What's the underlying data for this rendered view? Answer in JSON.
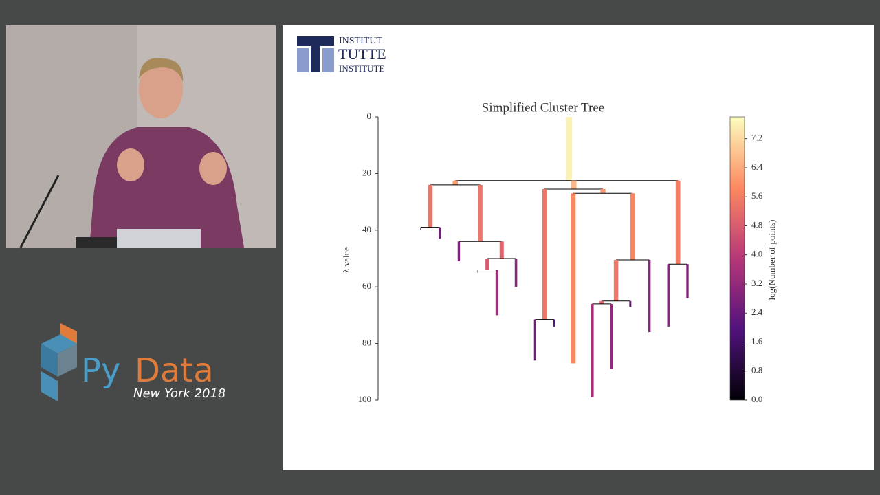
{
  "logo": {
    "line1": "INSTITUT",
    "line2": "TUTTE",
    "line3": "INSTITUTE"
  },
  "event": {
    "py": "Py",
    "data": "Data",
    "subtitle": "New York 2018"
  },
  "chart_data": {
    "type": "dendrogram",
    "title": "Simplified Cluster Tree",
    "y_label": "λ value",
    "ylim": [
      0,
      100
    ],
    "yticks": [
      0,
      20,
      40,
      60,
      80,
      100
    ],
    "colorbar_label": "log(Number of points)",
    "clim": [
      0,
      7.8
    ],
    "cticks": [
      {
        "value": 0,
        "label": "0.0"
      },
      {
        "value": 0.8,
        "label": "0.8"
      },
      {
        "value": 1.6,
        "label": "1.6"
      },
      {
        "value": 2.4,
        "label": "2.4"
      },
      {
        "value": 3.2,
        "label": "3.2"
      },
      {
        "value": 4,
        "label": "4.0"
      },
      {
        "value": 4.8,
        "label": "4.8"
      },
      {
        "value": 5.6,
        "label": "5.6"
      },
      {
        "value": 6.4,
        "label": "6.4"
      },
      {
        "value": 7.2,
        "label": "7.2"
      }
    ],
    "tree": {
      "birth": 0,
      "death": 22.5,
      "size": 7.6,
      "children": [
        {
          "birth": 22.5,
          "death": 24,
          "size": 6.2,
          "children": [
            {
              "birth": 24,
              "death": 39,
              "size": 5.4,
              "children": [
                {
                  "birth": 39,
                  "death": 40,
                  "size": 1.0
                },
                {
                  "birth": 39,
                  "death": 43,
                  "size": 2.6
                }
              ]
            },
            {
              "birth": 24,
              "death": 44,
              "size": 5.4,
              "children": [
                {
                  "birth": 44,
                  "death": 51,
                  "size": 2.8
                },
                {
                  "birth": 44,
                  "death": 50,
                  "size": 5.0,
                  "children": [
                    {
                      "birth": 50,
                      "death": 54,
                      "size": 4.8,
                      "children": [
                        {
                          "birth": 54,
                          "death": 55,
                          "size": 1.0
                        },
                        {
                          "birth": 54,
                          "death": 70,
                          "size": 3.4
                        }
                      ]
                    },
                    {
                      "birth": 50,
                      "death": 60,
                      "size": 3.0
                    }
                  ]
                }
              ]
            }
          ]
        },
        {
          "birth": 22.5,
          "death": 25.5,
          "size": 6.6,
          "children": [
            {
              "birth": 25.5,
              "death": 71.5,
              "size": 5.4,
              "children": [
                {
                  "birth": 71.5,
                  "death": 86,
                  "size": 2.6
                },
                {
                  "birth": 71.5,
                  "death": 74,
                  "size": 2.0
                }
              ]
            },
            {
              "birth": 25.5,
              "death": 27,
              "size": 6.2,
              "children": [
                {
                  "birth": 27,
                  "death": 87,
                  "size": 5.8
                },
                {
                  "birth": 27,
                  "death": 50.5,
                  "size": 5.8,
                  "children": [
                    {
                      "birth": 50.5,
                      "death": 65,
                      "size": 5.4,
                      "children": [
                        {
                          "birth": 65,
                          "death": 66,
                          "size": 5.0,
                          "children": [
                            {
                              "birth": 66,
                              "death": 99,
                              "size": 3.6
                            },
                            {
                              "birth": 66,
                              "death": 89,
                              "size": 3.2
                            }
                          ]
                        },
                        {
                          "birth": 65,
                          "death": 67,
                          "size": 2.5
                        }
                      ]
                    },
                    {
                      "birth": 50.5,
                      "death": 76,
                      "size": 3.0
                    }
                  ]
                }
              ]
            }
          ]
        },
        {
          "birth": 22.5,
          "death": 52,
          "size": 5.6,
          "children": [
            {
              "birth": 52,
              "death": 74,
              "size": 3.0
            },
            {
              "birth": 52,
              "death": 64,
              "size": 2.8
            }
          ]
        }
      ]
    }
  }
}
